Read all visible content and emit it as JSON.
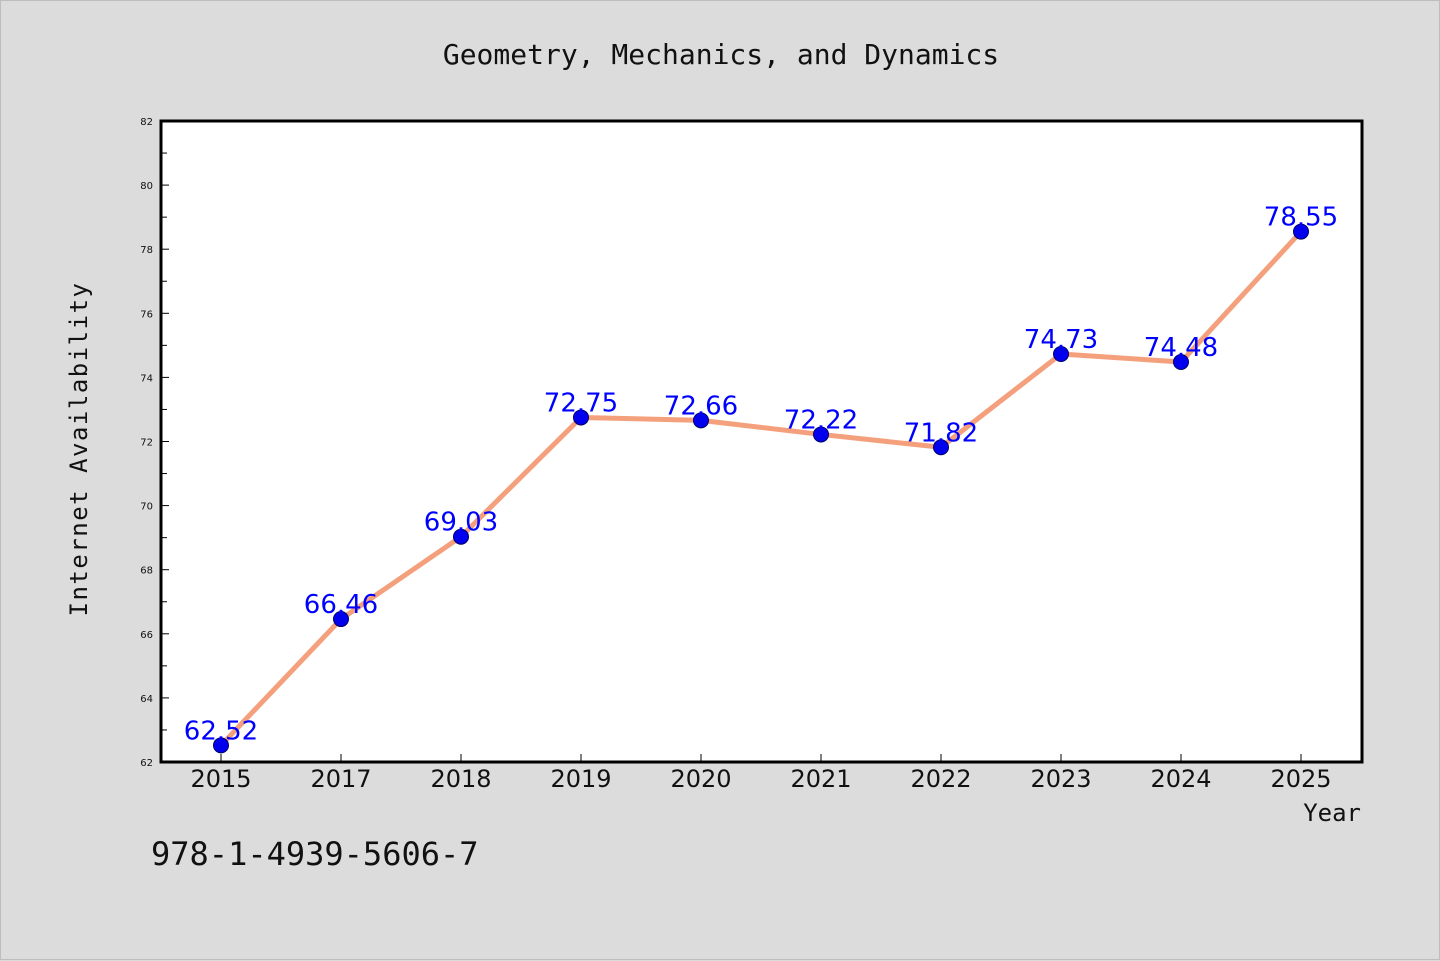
{
  "chart_data": {
    "type": "line",
    "title": "Geometry, Mechanics, and Dynamics",
    "xlabel": "Year",
    "ylabel": "Internet Availability",
    "categories": [
      "2015",
      "2017",
      "2018",
      "2019",
      "2020",
      "2021",
      "2022",
      "2023",
      "2024",
      "2025"
    ],
    "series": [
      {
        "values": [
          62.52,
          66.46,
          69.03,
          72.75,
          72.66,
          72.22,
          71.82,
          74.73,
          74.48,
          78.55
        ],
        "labels": [
          "62.52",
          "66.46",
          "69.03",
          "72.75",
          "72.66",
          "72.22",
          "71.82",
          "74.73",
          "74.48",
          "78.55"
        ]
      }
    ],
    "ylim": [
      62,
      82
    ],
    "yticks": [
      "62",
      "64",
      "66",
      "68",
      "70",
      "72",
      "74",
      "76",
      "78",
      "80",
      "82"
    ],
    "grid": false,
    "line_color": "#f4a07c",
    "marker_color": "#0000ee",
    "label_color": "#0000ff"
  },
  "footer_text": "978-1-4939-5606-7"
}
